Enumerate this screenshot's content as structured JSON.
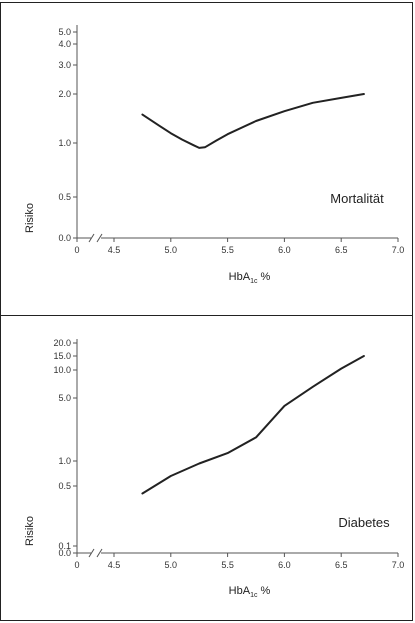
{
  "chart_data": [
    {
      "type": "line",
      "panel": "top",
      "annotation": "Mortalität",
      "ylabel": "Risiko",
      "xlabel_main": "HbA",
      "xlabel_sub": "1c",
      "xlabel_unit": " %",
      "x_ticks": [
        "0",
        "4.5",
        "5.0",
        "5.5",
        "6.0",
        "6.5",
        "7.0"
      ],
      "y_ticks": [
        "0.0",
        "0.5",
        "1.0",
        "2.0",
        "3.0",
        "4.0",
        "5.0"
      ],
      "series": [
        {
          "x": [
            4.75,
            4.9,
            5.0,
            5.1,
            5.2,
            5.25,
            5.3,
            5.4,
            5.5,
            5.75,
            6.0,
            6.25,
            6.5,
            6.7
          ],
          "y": [
            1.58,
            1.35,
            1.2,
            1.07,
            0.98,
            0.955,
            0.96,
            1.05,
            1.18,
            1.45,
            1.65,
            1.82,
            1.92,
            2.0
          ]
        }
      ]
    },
    {
      "type": "line",
      "panel": "bottom",
      "annotation": "Diabetes",
      "ylabel": "Risiko",
      "xlabel_main": "HbA",
      "xlabel_sub": "1c",
      "xlabel_unit": " %",
      "x_ticks": [
        "0",
        "4.5",
        "5.0",
        "5.5",
        "6.0",
        "6.5",
        "7.0"
      ],
      "y_ticks": [
        "0.0",
        "0.1",
        "0.5",
        "1.0",
        "5.0",
        "10.0",
        "15.0",
        "20.0"
      ],
      "series": [
        {
          "x": [
            4.75,
            5.0,
            5.25,
            5.5,
            5.75,
            6.0,
            6.25,
            6.5,
            6.7
          ],
          "y": [
            0.45,
            0.7,
            0.95,
            1.5,
            2.5,
            4.5,
            7.0,
            10.5,
            15.0
          ]
        }
      ]
    }
  ]
}
